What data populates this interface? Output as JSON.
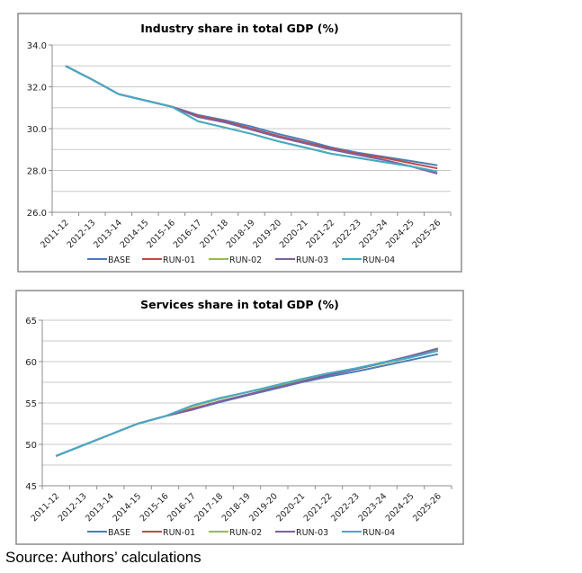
{
  "colors": {
    "BASE": "#4a7ebb",
    "RUN-01": "#be4b48",
    "RUN-02": "#98b954",
    "RUN-03": "#7d60a0",
    "RUN-04": "#46aac5"
  },
  "chart_data": [
    {
      "type": "line",
      "title": "Industry share in total GDP (%)",
      "xlabel": "",
      "ylabel": "",
      "ylim": [
        26,
        34
      ],
      "yticks": [
        "26.0",
        "28.0",
        "30.0",
        "32.0",
        "34.0"
      ],
      "grid": true,
      "legend": "bottom",
      "categories": [
        "2011-12",
        "2012-13",
        "2013-14",
        "2014-15",
        "2015-16",
        "2016-17",
        "2017-18",
        "2018-19",
        "2019-20",
        "2020-21",
        "2021-22",
        "2022-23",
        "2023-24",
        "2024-25",
        "2025-26"
      ],
      "series": [
        {
          "name": "BASE",
          "values": [
            33.0,
            32.35,
            31.65,
            31.35,
            31.05,
            30.65,
            30.4,
            30.1,
            29.75,
            29.45,
            29.1,
            28.85,
            28.65,
            28.45,
            28.25
          ]
        },
        {
          "name": "RUN-01",
          "values": [
            33.0,
            32.35,
            31.65,
            31.35,
            31.05,
            30.6,
            30.35,
            30.0,
            29.65,
            29.35,
            29.05,
            28.8,
            28.6,
            28.35,
            28.1
          ]
        },
        {
          "name": "RUN-02",
          "values": [
            33.0,
            32.35,
            31.65,
            31.35,
            31.05,
            30.35,
            30.05,
            29.75,
            29.4,
            29.1,
            28.8,
            28.6,
            28.4,
            28.2,
            27.95
          ]
        },
        {
          "name": "RUN-03",
          "values": [
            33.0,
            32.35,
            31.65,
            31.35,
            31.05,
            30.55,
            30.3,
            29.95,
            29.6,
            29.3,
            29.0,
            28.75,
            28.5,
            28.2,
            27.85
          ]
        },
        {
          "name": "RUN-04",
          "values": [
            33.0,
            32.35,
            31.65,
            31.35,
            31.05,
            30.35,
            30.05,
            29.75,
            29.4,
            29.1,
            28.8,
            28.6,
            28.4,
            28.2,
            27.95
          ]
        }
      ]
    },
    {
      "type": "line",
      "title": "Services share in total GDP (%)",
      "xlabel": "",
      "ylabel": "",
      "ylim": [
        45,
        65
      ],
      "yticks": [
        "45",
        "50",
        "55",
        "60",
        "65"
      ],
      "grid": true,
      "legend": "bottom",
      "categories": [
        "2011-12",
        "2012-13",
        "2013-14",
        "2014-15",
        "2015-16",
        "2016-17",
        "2017-18",
        "2018-19",
        "2019-20",
        "2020-21",
        "2021-22",
        "2022-23",
        "2023-24",
        "2024-25",
        "2025-26"
      ],
      "series": [
        {
          "name": "BASE",
          "values": [
            48.6,
            49.9,
            51.2,
            52.5,
            53.4,
            54.2,
            55.1,
            55.9,
            56.7,
            57.5,
            58.2,
            58.8,
            59.5,
            60.2,
            60.9
          ]
        },
        {
          "name": "RUN-01",
          "values": [
            48.6,
            49.9,
            51.2,
            52.5,
            53.4,
            54.3,
            55.2,
            56.0,
            56.8,
            57.6,
            58.4,
            59.1,
            59.8,
            60.5,
            61.5
          ]
        },
        {
          "name": "RUN-02",
          "values": [
            48.6,
            49.9,
            51.2,
            52.5,
            53.4,
            54.6,
            55.5,
            56.3,
            57.0,
            57.8,
            58.5,
            59.1,
            59.8,
            60.5,
            61.4
          ]
        },
        {
          "name": "RUN-03",
          "values": [
            48.6,
            49.9,
            51.2,
            52.5,
            53.4,
            54.2,
            55.2,
            56.0,
            56.8,
            57.6,
            58.4,
            59.1,
            59.9,
            60.7,
            61.6
          ]
        },
        {
          "name": "RUN-04",
          "values": [
            48.6,
            49.9,
            51.2,
            52.5,
            53.4,
            54.7,
            55.6,
            56.3,
            57.1,
            57.9,
            58.6,
            59.2,
            59.9,
            60.5,
            61.3
          ]
        }
      ]
    }
  ],
  "source": "Source: Authors’ calculations"
}
